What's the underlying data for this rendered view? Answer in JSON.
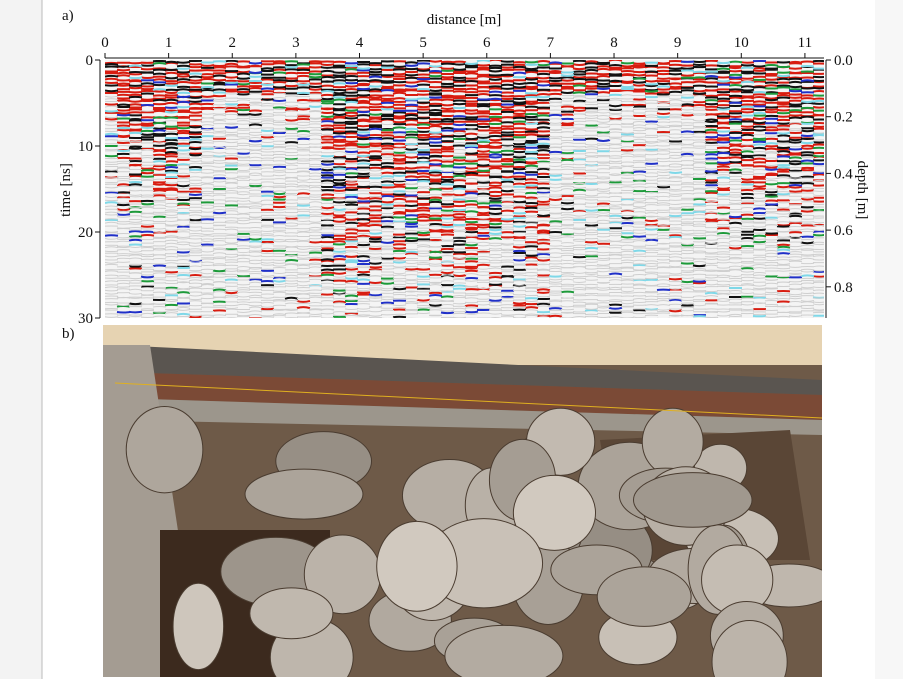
{
  "panel_a": {
    "label": "a)",
    "x_label": "distance [m]",
    "y_label": "time [ns]",
    "y2_label": "depth [m]",
    "xlim": [
      0,
      11.3
    ],
    "xticks": [
      0,
      1,
      2,
      3,
      4,
      5,
      6,
      7,
      8,
      9,
      10,
      11
    ],
    "ylim": [
      0,
      30
    ],
    "yticks": [
      0,
      10,
      20,
      30
    ],
    "y2lim": [
      0,
      0.91
    ],
    "y2ticks": [
      {
        "value": 0,
        "label": "0.0"
      },
      0.2,
      0.4,
      0.6,
      0.8
    ]
  },
  "panel_b": {
    "label": "b)"
  }
}
